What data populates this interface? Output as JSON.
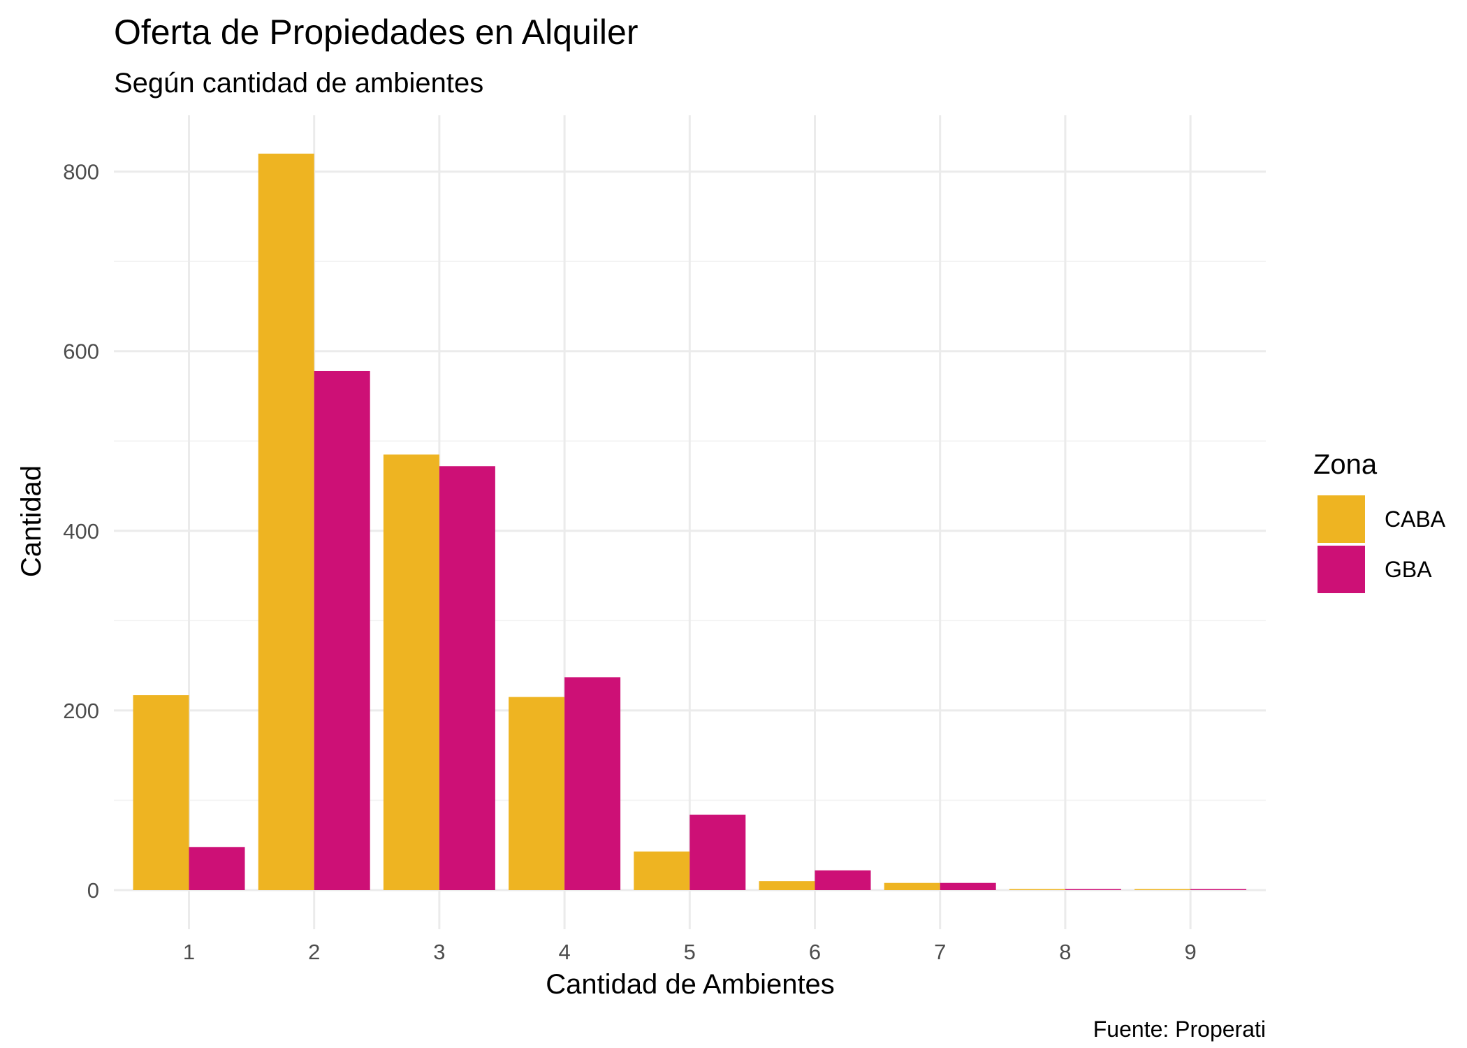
{
  "chart_data": {
    "type": "bar",
    "title": "Oferta de Propiedades en Alquiler",
    "subtitle": "Según cantidad de ambientes",
    "xlabel": "Cantidad de Ambientes",
    "ylabel": "Cantidad",
    "caption": "Fuente: Properati",
    "categories": [
      "1",
      "2",
      "3",
      "4",
      "5",
      "6",
      "7",
      "8",
      "9"
    ],
    "series": [
      {
        "name": "CABA",
        "color": "#EEB422",
        "values": [
          217,
          820,
          485,
          215,
          43,
          10,
          8,
          1,
          1
        ]
      },
      {
        "name": "GBA",
        "color": "#CD1076",
        "values": [
          48,
          578,
          472,
          237,
          84,
          22,
          8,
          1,
          1
        ]
      }
    ],
    "ylim": [
      0,
      850
    ],
    "yticks": [
      0,
      200,
      400,
      600,
      800
    ],
    "grid": true,
    "legend": {
      "title": "Zona",
      "position": "right"
    }
  }
}
